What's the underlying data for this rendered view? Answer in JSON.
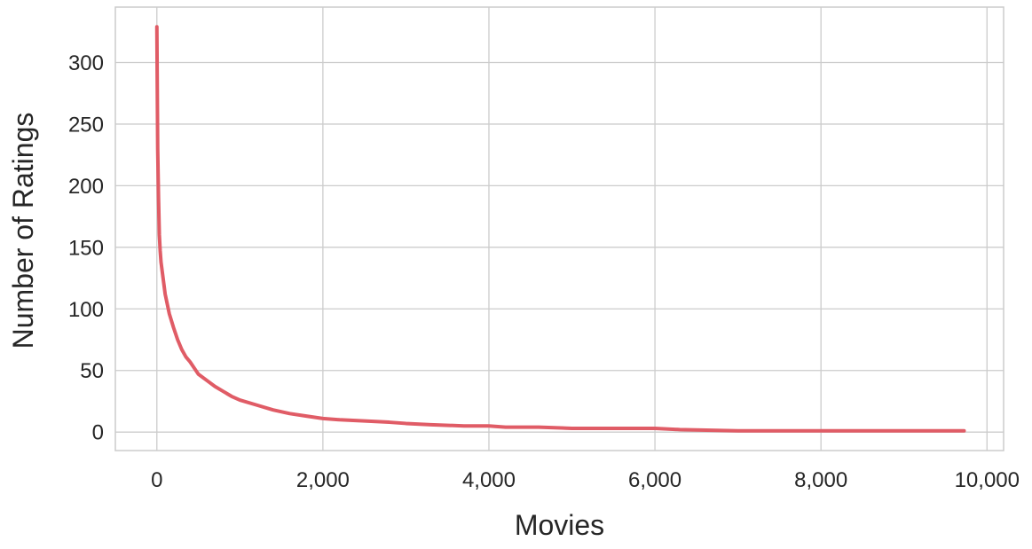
{
  "chart_data": {
    "type": "line",
    "title": "",
    "xlabel": "Movies",
    "ylabel": "Number of Ratings",
    "xlim": [
      -500,
      10200
    ],
    "ylim": [
      -15,
      345
    ],
    "x_ticks": [
      0,
      2000,
      4000,
      6000,
      8000,
      10000
    ],
    "x_tick_labels": [
      "0",
      "2,000",
      "4,000",
      "6,000",
      "8,000",
      "10,000"
    ],
    "y_ticks": [
      0,
      50,
      100,
      150,
      200,
      250,
      300
    ],
    "y_tick_labels": [
      "0",
      "50",
      "100",
      "150",
      "200",
      "250",
      "300"
    ],
    "grid": true,
    "legend": "none",
    "colors": {
      "line": "#e05c66",
      "grid": "#cccccc",
      "text": "#262626"
    },
    "series": [
      {
        "x": [
          0,
          5,
          10,
          20,
          30,
          40,
          50,
          75,
          100,
          150,
          200,
          250,
          300,
          350,
          400,
          450,
          500,
          600,
          700,
          800,
          900,
          1000,
          1200,
          1400,
          1600,
          1800,
          2000,
          2200,
          2500,
          2800,
          3000,
          3300,
          3700,
          4000,
          4200,
          4600,
          5000,
          5500,
          6000,
          6300,
          7000,
          8000,
          9000,
          9724
        ],
        "y": [
          329,
          280,
          230,
          190,
          160,
          147,
          138,
          125,
          112,
          96,
          85,
          75,
          67,
          61,
          57,
          52,
          47,
          42,
          37,
          33,
          29,
          26,
          22,
          18,
          15,
          13,
          11,
          10,
          9,
          8,
          7,
          6,
          5,
          5,
          4,
          4,
          3,
          3,
          3,
          2,
          1,
          1,
          1,
          1
        ]
      }
    ]
  }
}
